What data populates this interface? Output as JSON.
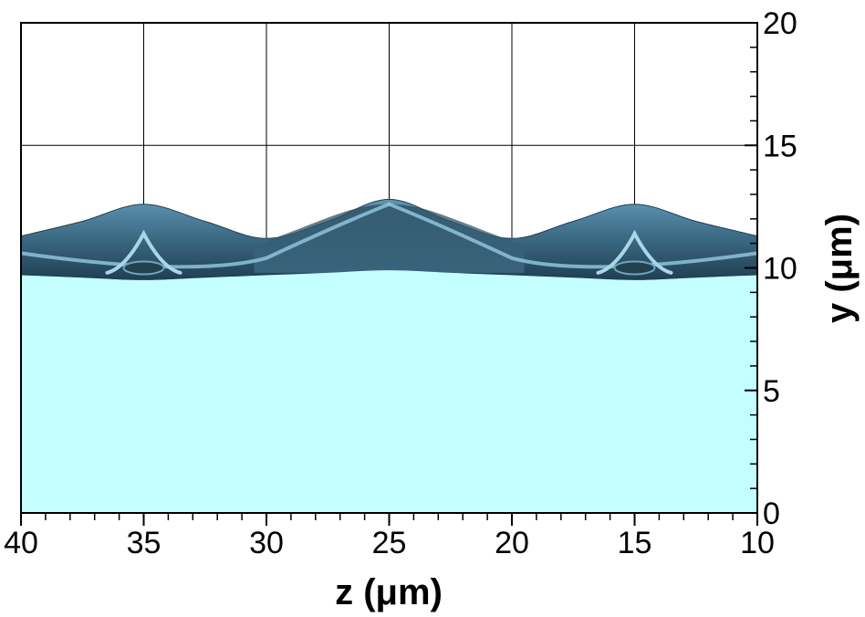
{
  "chart_data": {
    "type": "area",
    "xlabel": "z (μm)",
    "ylabel": "y (μm)",
    "xlim": [
      40,
      10
    ],
    "ylim": [
      0,
      20
    ],
    "x_ticks": [
      40,
      35,
      30,
      25,
      20,
      15,
      10
    ],
    "x_tick_labels": [
      "40",
      "35",
      "30",
      "25",
      "20",
      "15",
      "10"
    ],
    "y_ticks": [
      0,
      5,
      10,
      15,
      20
    ],
    "y_tick_labels": [
      "0",
      "5",
      "10",
      "15",
      "20"
    ],
    "grid": true,
    "y_axis_side": "right",
    "series": [
      {
        "role": "liquid-region",
        "color": "#c4ffff",
        "x": [
          40,
          37.5,
          35,
          32.5,
          30,
          27.5,
          25,
          22.5,
          20,
          17.5,
          15,
          12.5,
          10
        ],
        "y": [
          9.7,
          9.6,
          9.5,
          9.6,
          9.7,
          9.8,
          9.9,
          9.8,
          9.7,
          9.6,
          9.5,
          9.6,
          9.7
        ]
      },
      {
        "role": "interface-surface-top",
        "color": "#3f6d85",
        "x": [
          40,
          37.5,
          35,
          32.5,
          30,
          27.5,
          25,
          22.5,
          20,
          17.5,
          15,
          12.5,
          10
        ],
        "y": [
          11.3,
          11.9,
          12.6,
          11.9,
          11.2,
          11.9,
          12.8,
          11.9,
          11.2,
          11.9,
          12.6,
          11.9,
          11.3
        ]
      }
    ]
  }
}
